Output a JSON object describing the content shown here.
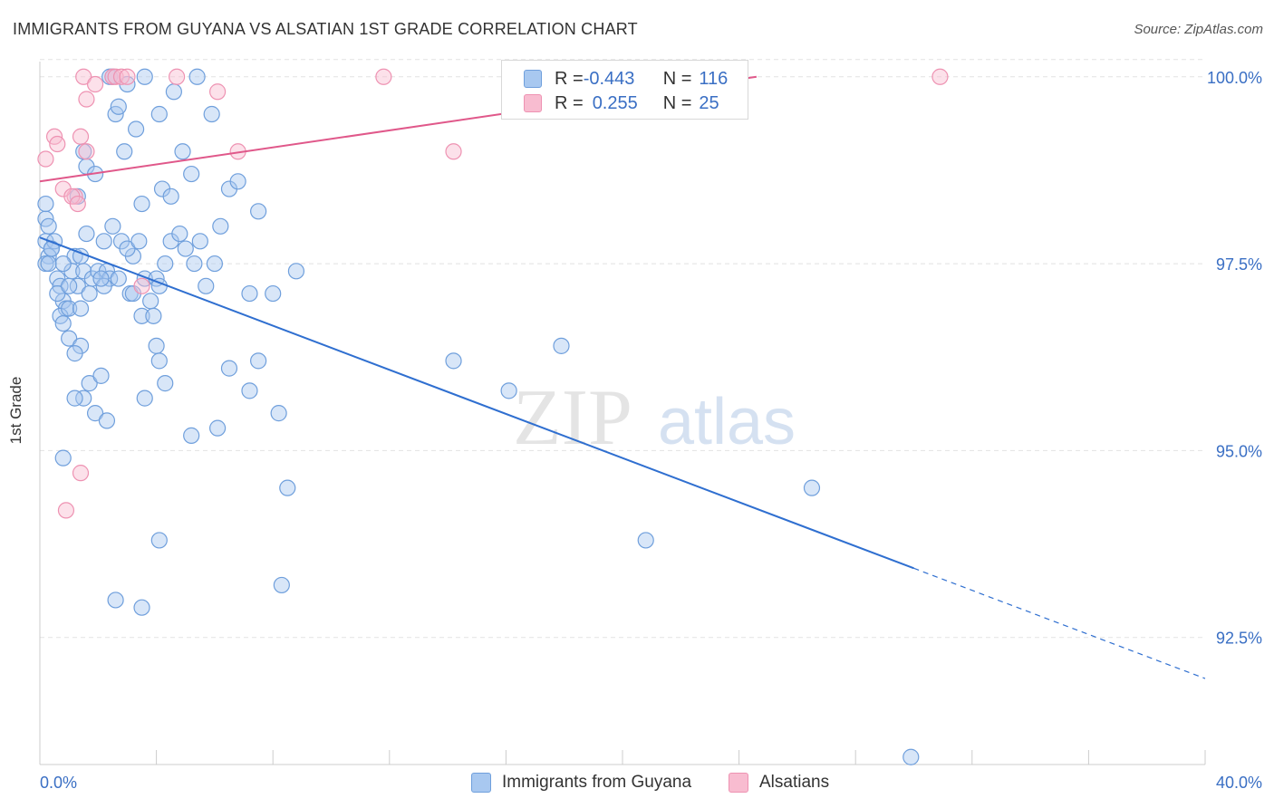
{
  "title": "IMMIGRANTS FROM GUYANA VS ALSATIAN 1ST GRADE CORRELATION CHART",
  "source": "Source: ZipAtlas.com",
  "watermark": {
    "zip": "ZIP",
    "atlas": "atlas"
  },
  "colors": {
    "blue_fill": "#a8c8f0",
    "blue_stroke": "#6f9fdc",
    "blue_line": "#2f6fd0",
    "pink_fill": "#f8bcd0",
    "pink_stroke": "#ee92b2",
    "pink_line": "#e0588a",
    "tick_label": "#3a6fc4",
    "grid": "#e2e2e2"
  },
  "legend": {
    "rows": [
      {
        "r_label": "R = ",
        "r_value": "-0.443",
        "n_label": "N = ",
        "n_value": "116"
      },
      {
        "r_label": "R = ",
        "r_value": "0.255",
        "n_label": "N = ",
        "n_value": "25"
      }
    ]
  },
  "chart_data": {
    "type": "scatter",
    "xlabel": "",
    "ylabel": "1st Grade",
    "xlim": [
      0,
      40
    ],
    "ylim": [
      90.8,
      100.3
    ],
    "x_tick_labels": [
      {
        "value": 0,
        "label": "0.0%"
      },
      {
        "value": 40,
        "label": "40.0%"
      }
    ],
    "y_tick_labels": [
      {
        "value": 100,
        "label": "100.0%"
      },
      {
        "value": 97.5,
        "label": "97.5%"
      },
      {
        "value": 95,
        "label": "95.0%"
      },
      {
        "value": 92.5,
        "label": "92.5%"
      }
    ],
    "grid": true,
    "legend_position": "top-center",
    "series": [
      {
        "name": "Immigrants from Guyana",
        "color": "#a8c8f0",
        "trend": {
          "x_start": 0,
          "y_start": 97.85,
          "x_solid_end": 30.0,
          "x_end": 40,
          "y_end": 91.95
        },
        "points": [
          [
            0.2,
            98.1
          ],
          [
            0.3,
            98.0
          ],
          [
            0.2,
            97.8
          ],
          [
            0.4,
            97.7
          ],
          [
            0.3,
            97.6
          ],
          [
            0.2,
            97.5
          ],
          [
            0.3,
            97.5
          ],
          [
            0.5,
            97.8
          ],
          [
            0.4,
            97.7
          ],
          [
            0.2,
            98.3
          ],
          [
            0.6,
            97.3
          ],
          [
            0.7,
            97.2
          ],
          [
            0.8,
            97.0
          ],
          [
            0.6,
            97.1
          ],
          [
            0.9,
            96.9
          ],
          [
            0.7,
            96.8
          ],
          [
            1.0,
            96.9
          ],
          [
            1.2,
            97.6
          ],
          [
            1.1,
            97.4
          ],
          [
            0.8,
            97.5
          ],
          [
            1.5,
            97.4
          ],
          [
            1.8,
            97.3
          ],
          [
            1.3,
            97.2
          ],
          [
            1.7,
            97.1
          ],
          [
            2.0,
            97.4
          ],
          [
            2.3,
            97.4
          ],
          [
            2.4,
            97.3
          ],
          [
            1.6,
            97.9
          ],
          [
            2.2,
            97.8
          ],
          [
            2.5,
            98.0
          ],
          [
            1.5,
            99.0
          ],
          [
            1.6,
            98.8
          ],
          [
            1.9,
            98.7
          ],
          [
            1.3,
            98.4
          ],
          [
            2.6,
            99.5
          ],
          [
            2.9,
            99.0
          ],
          [
            3.3,
            99.3
          ],
          [
            3.5,
            98.3
          ],
          [
            4.2,
            98.5
          ],
          [
            4.5,
            98.4
          ],
          [
            2.8,
            97.8
          ],
          [
            3.2,
            97.6
          ],
          [
            3.0,
            97.7
          ],
          [
            3.4,
            97.8
          ],
          [
            3.6,
            97.3
          ],
          [
            3.8,
            97.0
          ],
          [
            4.0,
            97.3
          ],
          [
            4.3,
            97.5
          ],
          [
            4.5,
            97.8
          ],
          [
            4.8,
            97.9
          ],
          [
            5.0,
            97.7
          ],
          [
            5.3,
            97.5
          ],
          [
            5.5,
            97.8
          ],
          [
            5.7,
            97.2
          ],
          [
            6.0,
            97.5
          ],
          [
            6.2,
            98.0
          ],
          [
            6.5,
            98.5
          ],
          [
            6.8,
            98.6
          ],
          [
            7.5,
            98.2
          ],
          [
            5.2,
            98.7
          ],
          [
            2.4,
            100.0
          ],
          [
            2.5,
            100.0
          ],
          [
            3.0,
            99.9
          ],
          [
            3.6,
            100.0
          ],
          [
            4.6,
            99.8
          ],
          [
            4.1,
            99.5
          ],
          [
            5.4,
            100.0
          ],
          [
            5.9,
            99.5
          ],
          [
            4.9,
            99.0
          ],
          [
            2.7,
            99.6
          ],
          [
            0.8,
            96.7
          ],
          [
            1.0,
            96.5
          ],
          [
            1.4,
            96.4
          ],
          [
            1.2,
            96.3
          ],
          [
            1.7,
            95.9
          ],
          [
            2.1,
            96.0
          ],
          [
            1.5,
            95.7
          ],
          [
            1.9,
            95.5
          ],
          [
            1.2,
            95.7
          ],
          [
            2.3,
            95.4
          ],
          [
            3.5,
            96.8
          ],
          [
            3.9,
            96.8
          ],
          [
            4.0,
            96.4
          ],
          [
            4.1,
            96.2
          ],
          [
            4.3,
            95.9
          ],
          [
            3.6,
            95.7
          ],
          [
            5.2,
            95.2
          ],
          [
            6.1,
            95.3
          ],
          [
            6.5,
            96.1
          ],
          [
            7.2,
            95.8
          ],
          [
            7.5,
            96.2
          ],
          [
            8.2,
            95.5
          ],
          [
            8.5,
            94.5
          ],
          [
            7.2,
            97.1
          ],
          [
            8.0,
            97.1
          ],
          [
            8.8,
            97.4
          ],
          [
            1.4,
            96.9
          ],
          [
            2.2,
            97.2
          ],
          [
            3.1,
            97.1
          ],
          [
            4.1,
            97.2
          ],
          [
            0.8,
            94.9
          ],
          [
            4.1,
            93.8
          ],
          [
            2.6,
            93.0
          ],
          [
            3.5,
            92.9
          ],
          [
            8.3,
            93.2
          ],
          [
            14.2,
            96.2
          ],
          [
            16.1,
            95.8
          ],
          [
            17.9,
            96.4
          ],
          [
            20.8,
            93.8
          ],
          [
            26.5,
            94.5
          ],
          [
            29.9,
            90.9
          ],
          [
            1.0,
            97.2
          ],
          [
            1.4,
            97.6
          ],
          [
            2.1,
            97.3
          ],
          [
            3.2,
            97.1
          ],
          [
            2.7,
            97.3
          ]
        ]
      },
      {
        "name": "Alsatians",
        "color": "#f8bcd0",
        "trend": {
          "x_start": 0,
          "y_start": 98.6,
          "x_end": 24.6,
          "y_end": 100.0
        },
        "points": [
          [
            0.2,
            98.9
          ],
          [
            0.5,
            99.2
          ],
          [
            0.6,
            99.1
          ],
          [
            1.2,
            98.4
          ],
          [
            0.8,
            98.5
          ],
          [
            1.1,
            98.4
          ],
          [
            1.4,
            99.2
          ],
          [
            1.6,
            99.0
          ],
          [
            1.5,
            100.0
          ],
          [
            1.6,
            99.7
          ],
          [
            1.9,
            99.9
          ],
          [
            2.5,
            100.0
          ],
          [
            2.6,
            100.0
          ],
          [
            2.8,
            100.0
          ],
          [
            3.0,
            100.0
          ],
          [
            4.7,
            100.0
          ],
          [
            6.1,
            99.8
          ],
          [
            6.8,
            99.0
          ],
          [
            11.8,
            100.0
          ],
          [
            14.2,
            99.0
          ],
          [
            30.9,
            100.0
          ],
          [
            1.3,
            98.3
          ],
          [
            1.4,
            94.7
          ],
          [
            0.9,
            94.2
          ],
          [
            3.5,
            97.2
          ]
        ]
      }
    ]
  }
}
